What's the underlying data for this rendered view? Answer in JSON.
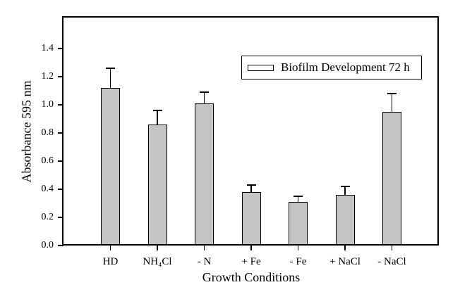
{
  "figure": {
    "background": "#ffffff"
  },
  "chart_data": {
    "type": "bar",
    "title": "",
    "xlabel": "Growth Conditions",
    "ylabel": "Absorbance 595 nm",
    "categories": [
      "HD",
      "NH₄Cl",
      "- N",
      "+ Fe",
      "- Fe",
      "+ NaCl",
      "- NaCl"
    ],
    "values": [
      1.12,
      0.86,
      1.01,
      0.38,
      0.31,
      0.36,
      0.95
    ],
    "errors_plus": [
      0.14,
      0.1,
      0.08,
      0.05,
      0.04,
      0.06,
      0.13
    ],
    "ylim": [
      0,
      1.62
    ],
    "ytick_labels": [
      "0.0",
      "0.2",
      "0.4",
      "0.6",
      "0.8",
      "1.0",
      "1.2",
      "1.4"
    ],
    "grid": false,
    "legend": {
      "label": "Biofilm Development 72 h",
      "position": "upper-right-inside"
    },
    "colors": {
      "bar_fill": "#C4C4C4",
      "bar_border": "#000000",
      "axis": "#000000",
      "background": "#ffffff"
    }
  }
}
